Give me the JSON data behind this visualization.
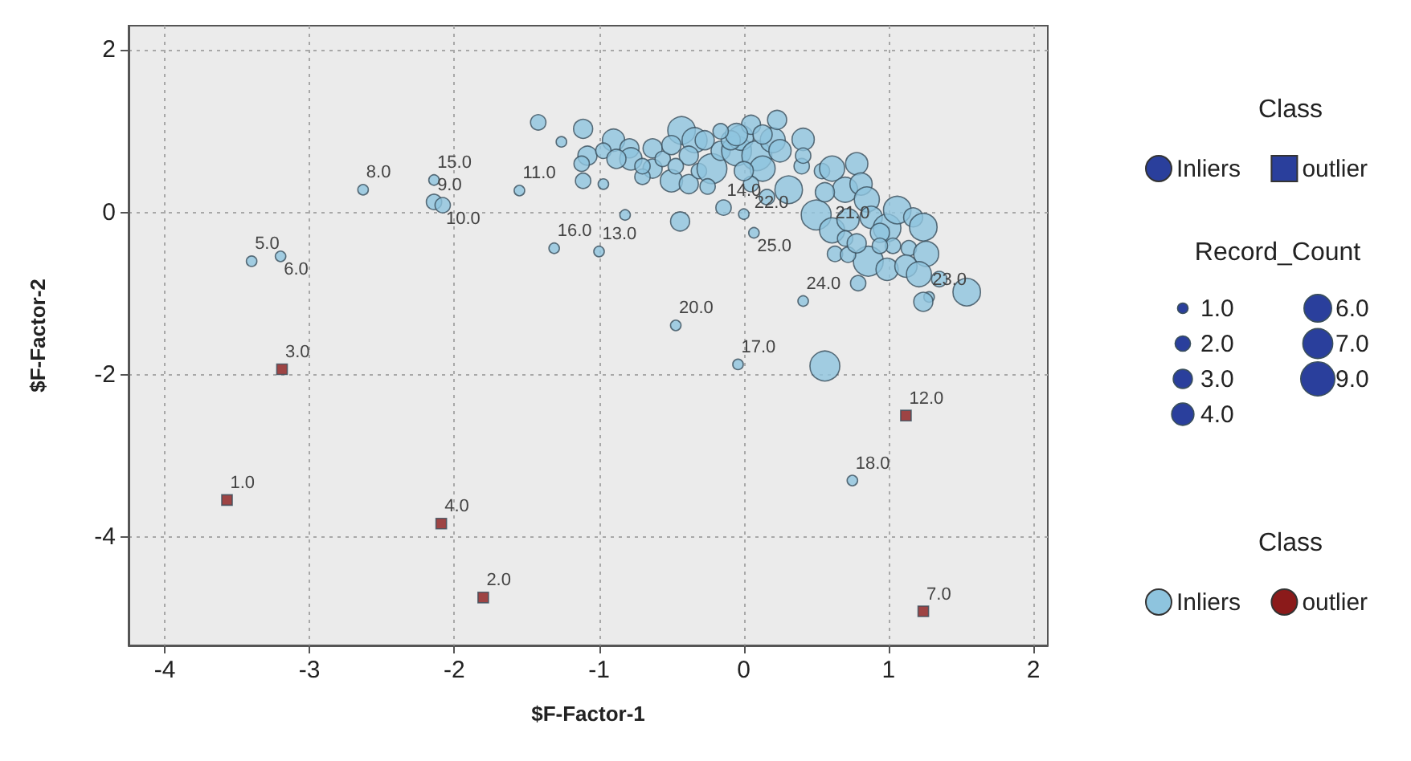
{
  "chart_data": {
    "type": "bubble",
    "xlabel": "$F-Factor-1",
    "ylabel": "$F-Factor-2",
    "legend_title": "Class",
    "legend": "right",
    "grid": true,
    "xlim": [
      -4.25,
      2.1
    ],
    "xticks": [
      -4,
      -3,
      -2,
      -1,
      0,
      1,
      2
    ],
    "ylim": [
      -5.33,
      2.3
    ],
    "yticks": [
      -4,
      -2,
      0,
      2
    ],
    "size_legend": [
      {
        "value": 1,
        "label": "1.0"
      },
      {
        "value": 2,
        "label": "2.0"
      },
      {
        "value": 3,
        "label": "3.0"
      },
      {
        "value": 4,
        "label": "4.0"
      },
      {
        "value": 6,
        "label": "6.0"
      },
      {
        "value": 7,
        "label": "7.0"
      },
      {
        "value": 9,
        "label": "9.0"
      }
    ],
    "annotations": [
      "Record_Count",
      {
        "text": "1.0",
        "x": -3.57,
        "y": -3.54
      },
      {
        "text": "2.0",
        "x": -1.8,
        "y": -4.74
      },
      {
        "text": "3.0",
        "x": -3.19,
        "y": -1.93
      },
      {
        "text": "4.0",
        "x": -2.09,
        "y": -3.83
      },
      {
        "text": "5.0",
        "x": -3.4,
        "y": -0.6
      },
      {
        "text": "6.0",
        "x": -3.2,
        "y": -0.54
      },
      {
        "text": "7.0",
        "x": 1.24,
        "y": -4.91
      },
      {
        "text": "8.0",
        "x": -2.63,
        "y": 0.28
      },
      {
        "text": "9.0",
        "x": -2.14,
        "y": 0.13
      },
      {
        "text": "10.0",
        "x": -2.08,
        "y": 0.09
      },
      {
        "text": "11.0",
        "x": -1.55,
        "y": 0.27
      },
      {
        "text": "12.0",
        "x": 1.12,
        "y": -2.5
      },
      {
        "text": "13.0",
        "x": -1.0,
        "y": -0.48
      },
      {
        "text": "14.0",
        "x": -0.14,
        "y": 0.06
      },
      {
        "text": "15.0",
        "x": -2.14,
        "y": 0.4
      },
      {
        "text": "16.0",
        "x": -1.31,
        "y": -0.44
      },
      {
        "text": "17.0",
        "x": -0.04,
        "y": -1.87
      },
      {
        "text": "18.0",
        "x": 0.75,
        "y": -3.3
      },
      {
        "text": "20.0",
        "x": -0.47,
        "y": -1.39
      },
      {
        "text": "21.0",
        "x": 0.61,
        "y": -0.22
      },
      {
        "text": "22.0",
        "x": 0.05,
        "y": 0.28
      },
      {
        "text": "23.0",
        "x": 1.28,
        "y": -1.04
      },
      {
        "text": "24.0",
        "x": 0.41,
        "y": -1.09
      },
      {
        "text": "25.0",
        "x": 0.07,
        "y": -0.25
      }
    ],
    "series": [
      {
        "name": "Inliers",
        "color": "#8ec4de",
        "marker": "circle",
        "x": [
          -3.4,
          -3.2,
          -2.63,
          -2.14,
          -2.14,
          -2.08,
          -1.55,
          -1.42,
          -1.26,
          -1.31,
          -1.0,
          -0.47,
          -0.04,
          0.75,
          0.56,
          0.41,
          1.28,
          1.54,
          0.07,
          0.0,
          -0.14,
          -0.82,
          -0.44,
          -1.11,
          -1.11,
          -0.97,
          -0.9,
          -1.08,
          -0.97,
          -0.79,
          -0.78,
          -0.88,
          -0.63,
          -0.63,
          -0.5,
          -0.7,
          -0.56,
          -0.43,
          -0.34,
          -0.38,
          -0.47,
          -0.38,
          -0.31,
          -0.22,
          -0.25,
          -0.16,
          -0.05,
          -0.02,
          -0.09,
          0.09,
          0.2,
          0.25,
          0.13,
          0.05,
          0.0,
          0.31,
          0.41,
          0.4,
          0.54,
          0.61,
          0.78,
          0.7,
          0.81,
          0.85,
          0.5,
          0.61,
          0.72,
          0.56,
          0.88,
          0.99,
          1.06,
          1.17,
          1.24,
          1.03,
          1.14,
          1.26,
          0.86,
          0.99,
          1.12,
          1.21,
          0.79,
          0.63,
          0.72,
          1.24,
          1.35,
          0.23,
          0.05,
          -0.05,
          0.13,
          -0.16,
          0.16,
          0.7,
          0.78,
          0.94,
          0.94,
          0.41,
          -0.27,
          -0.5,
          -0.7,
          -1.12
        ],
        "values": [
          -0.6,
          -0.54,
          0.28,
          0.4,
          0.13,
          0.09,
          0.27,
          1.11,
          0.87,
          -0.44,
          -0.48,
          -1.39,
          -1.87,
          -3.3,
          -1.89,
          -1.09,
          -1.04,
          -0.98,
          -0.25,
          -0.02,
          0.06,
          -0.03,
          -0.11,
          1.03,
          0.39,
          0.35,
          0.89,
          0.7,
          0.76,
          0.79,
          0.66,
          0.66,
          0.79,
          0.54,
          0.39,
          0.44,
          0.66,
          1.01,
          0.89,
          0.7,
          0.57,
          0.35,
          0.51,
          0.54,
          0.32,
          0.76,
          0.76,
          0.92,
          0.89,
          0.7,
          0.89,
          0.76,
          0.54,
          0.35,
          0.51,
          0.28,
          0.9,
          0.57,
          0.51,
          0.54,
          0.6,
          0.28,
          0.35,
          0.16,
          -0.03,
          -0.22,
          -0.09,
          0.25,
          -0.06,
          -0.19,
          0.03,
          -0.06,
          -0.18,
          -0.41,
          -0.44,
          -0.51,
          -0.6,
          -0.7,
          -0.66,
          -0.76,
          -0.87,
          -0.51,
          -0.52,
          -1.1,
          -0.82,
          1.14,
          1.08,
          0.96,
          0.96,
          1.0,
          0.19,
          -0.32,
          -0.38,
          -0.25,
          -0.41,
          0.7,
          0.89,
          0.83,
          0.57,
          0.6
        ],
        "sizes": [
          1,
          1,
          1,
          1,
          2,
          2,
          1,
          2,
          1,
          1,
          1,
          1,
          1,
          1,
          7,
          1,
          1,
          6,
          1,
          1,
          2,
          1,
          3,
          3,
          2,
          1,
          4,
          3,
          2,
          3,
          4,
          3,
          3,
          3,
          4,
          2,
          2,
          6,
          5,
          3,
          2,
          3,
          2,
          7,
          2,
          3,
          7,
          5,
          3,
          7,
          5,
          4,
          5,
          2,
          3,
          6,
          4,
          2,
          2,
          5,
          4,
          5,
          4,
          5,
          7,
          5,
          4,
          3,
          4,
          6,
          6,
          3,
          6,
          2,
          2,
          5,
          7,
          4,
          4,
          5,
          2,
          2,
          2,
          3,
          2,
          3,
          3,
          4,
          3,
          2,
          2,
          2,
          3,
          3,
          2,
          2,
          3,
          3,
          2,
          2
        ]
      },
      {
        "name": "outlier",
        "color": "#8b1a1a",
        "marker": "square",
        "x": [
          -3.57,
          -1.8,
          -3.19,
          -2.09,
          1.24,
          1.12
        ],
        "values": [
          -3.54,
          -4.74,
          -1.93,
          -3.83,
          -4.91,
          -2.5
        ],
        "sizes": [
          1,
          1,
          1,
          1,
          1,
          1
        ]
      }
    ]
  }
}
